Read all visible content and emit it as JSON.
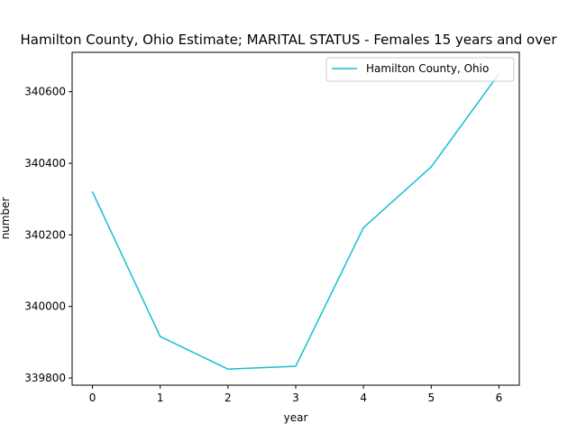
{
  "chart_data": {
    "type": "line",
    "title": "Hamilton County, Ohio Estimate; MARITAL STATUS - Females 15 years and over",
    "xlabel": "year",
    "ylabel": "number",
    "x": [
      0,
      1,
      2,
      3,
      4,
      5,
      6
    ],
    "xticks": [
      "0",
      "1",
      "2",
      "3",
      "4",
      "5",
      "6"
    ],
    "yticks": [
      "339800",
      "340000",
      "340200",
      "340400",
      "340600"
    ],
    "xlim": [
      -0.3,
      6.3
    ],
    "ylim": [
      339780,
      340710
    ],
    "grid": false,
    "legend_position": "top-right",
    "series": [
      {
        "name": "Hamilton County, Ohio",
        "color": "#17becf",
        "values": [
          340320,
          339916,
          339825,
          339833,
          340220,
          340390,
          340650
        ]
      }
    ]
  }
}
